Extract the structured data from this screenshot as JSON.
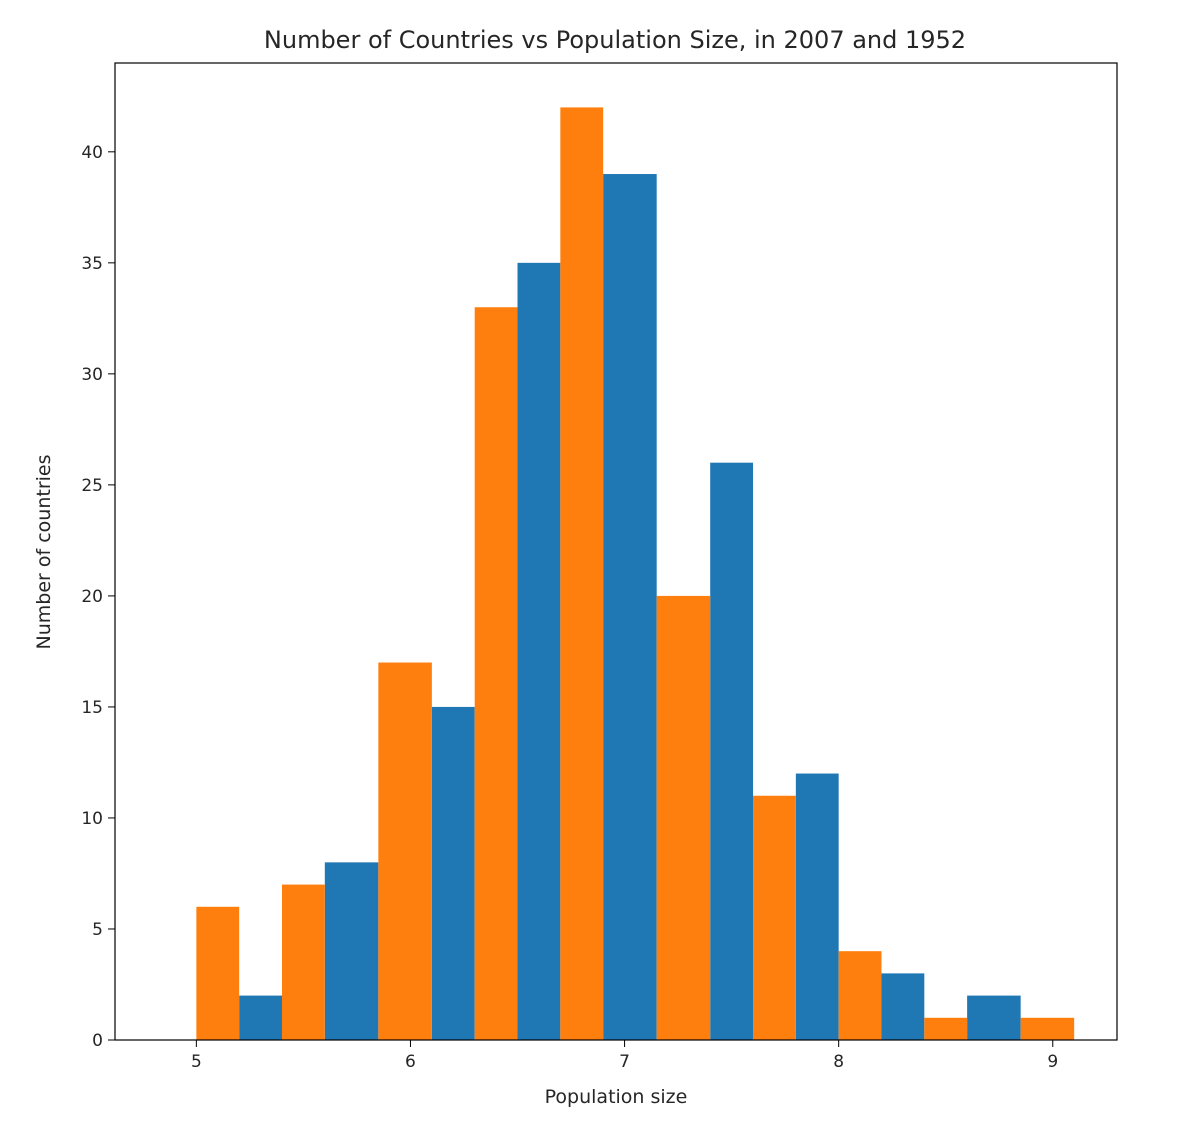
{
  "chart_data": {
    "type": "bar",
    "title": "Number of Countries vs Population Size, in 2007 and 1952",
    "xlabel": "Population size",
    "ylabel": "Number of countries",
    "xlim": [
      4.62,
      9.3
    ],
    "ylim": [
      0,
      44
    ],
    "x_ticks": [
      5,
      6,
      7,
      8,
      9
    ],
    "y_ticks": [
      0,
      5,
      10,
      15,
      20,
      25,
      30,
      35,
      40
    ],
    "grid": false,
    "legend": "none",
    "bins": [
      [
        4.8,
        5.2
      ],
      [
        5.2,
        5.6
      ],
      [
        5.6,
        6.1
      ],
      [
        6.1,
        6.5
      ],
      [
        6.5,
        6.9
      ],
      [
        6.9,
        7.4
      ],
      [
        7.4,
        7.8
      ],
      [
        7.8,
        8.2
      ],
      [
        8.2,
        8.6
      ],
      [
        8.6,
        9.1
      ]
    ],
    "series": [
      {
        "color": "#1f77b4",
        "values": [
          0,
          2,
          8,
          15,
          35,
          39,
          26,
          12,
          3,
          2
        ]
      },
      {
        "color": "#ff7f0e",
        "values": [
          6,
          7,
          17,
          33,
          42,
          20,
          11,
          4,
          1,
          1
        ]
      }
    ]
  }
}
